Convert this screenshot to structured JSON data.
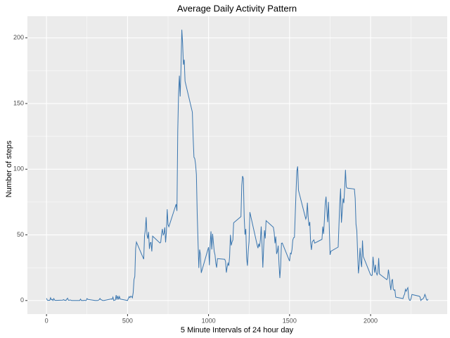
{
  "chart_data": {
    "type": "line",
    "title": "Average Daily Activity Pattern",
    "x_label": "5 Minute Intervals of 24 hour day",
    "y_label": "Number of steps",
    "color": "#3a76af",
    "grid": true,
    "xlim": [
      -117.75,
      2472.75
    ],
    "xticks": [
      0,
      500,
      1000,
      1500,
      2000
    ],
    "xminor": [
      250,
      750,
      1250,
      1750,
      2250
    ],
    "ylim": [
      -10.3,
      216.5
    ],
    "yticks": [
      0,
      50,
      100,
      150,
      200
    ],
    "yminor": [
      25,
      75,
      125,
      175
    ],
    "x": [
      0,
      5,
      10,
      15,
      20,
      25,
      30,
      35,
      40,
      45,
      50,
      55,
      100,
      105,
      110,
      115,
      120,
      125,
      130,
      135,
      140,
      145,
      150,
      155,
      200,
      205,
      210,
      215,
      220,
      225,
      230,
      235,
      240,
      245,
      250,
      255,
      300,
      305,
      310,
      315,
      320,
      325,
      330,
      335,
      340,
      345,
      350,
      355,
      400,
      405,
      410,
      415,
      420,
      425,
      430,
      435,
      440,
      445,
      450,
      455,
      500,
      505,
      510,
      515,
      520,
      525,
      530,
      535,
      540,
      545,
      550,
      555,
      600,
      605,
      610,
      615,
      620,
      625,
      630,
      635,
      640,
      645,
      650,
      655,
      700,
      705,
      710,
      715,
      720,
      725,
      730,
      735,
      740,
      745,
      750,
      755,
      800,
      805,
      810,
      815,
      820,
      825,
      830,
      835,
      840,
      845,
      850,
      855,
      900,
      905,
      910,
      915,
      920,
      925,
      930,
      935,
      940,
      945,
      950,
      955,
      1000,
      1005,
      1010,
      1015,
      1020,
      1025,
      1030,
      1035,
      1040,
      1045,
      1050,
      1055,
      1100,
      1105,
      1110,
      1115,
      1120,
      1125,
      1130,
      1135,
      1140,
      1145,
      1150,
      1155,
      1200,
      1205,
      1210,
      1215,
      1220,
      1225,
      1230,
      1235,
      1240,
      1245,
      1250,
      1255,
      1300,
      1305,
      1310,
      1315,
      1320,
      1325,
      1330,
      1335,
      1340,
      1345,
      1350,
      1355,
      1400,
      1405,
      1410,
      1415,
      1420,
      1425,
      1430,
      1435,
      1440,
      1445,
      1450,
      1455,
      1500,
      1505,
      1510,
      1515,
      1520,
      1525,
      1530,
      1535,
      1540,
      1545,
      1550,
      1555,
      1600,
      1605,
      1610,
      1615,
      1620,
      1625,
      1630,
      1635,
      1640,
      1645,
      1650,
      1655,
      1700,
      1705,
      1710,
      1715,
      1720,
      1725,
      1730,
      1735,
      1740,
      1745,
      1750,
      1755,
      1800,
      1805,
      1810,
      1815,
      1820,
      1825,
      1830,
      1835,
      1840,
      1845,
      1850,
      1855,
      1900,
      1905,
      1910,
      1915,
      1920,
      1925,
      1930,
      1935,
      1940,
      1945,
      1950,
      1955,
      2000,
      2005,
      2010,
      2015,
      2020,
      2025,
      2030,
      2035,
      2040,
      2045,
      2050,
      2055,
      2100,
      2105,
      2110,
      2115,
      2120,
      2125,
      2130,
      2135,
      2140,
      2145,
      2150,
      2155,
      2200,
      2205,
      2210,
      2215,
      2220,
      2225,
      2230,
      2235,
      2240,
      2245,
      2250,
      2255,
      2300,
      2305,
      2310,
      2315,
      2320,
      2325,
      2330,
      2335,
      2340,
      2345,
      2350,
      2355
    ],
    "values": [
      1.7,
      0.3,
      0.1,
      0.2,
      0.1,
      2.1,
      0.5,
      0.9,
      0,
      1.5,
      0.3,
      0.1,
      0.3,
      0.7,
      0.2,
      0.3,
      0,
      1.1,
      1.8,
      0.2,
      0.2,
      0.4,
      0.3,
      0,
      0,
      0,
      1.1,
      0,
      0,
      0.1,
      0,
      0.2,
      0,
      0,
      1.5,
      0.9,
      0,
      0,
      0,
      0,
      0.2,
      0.6,
      1.6,
      0.6,
      0.5,
      0.1,
      0,
      0,
      1.2,
      0.9,
      2.6,
      0,
      0.3,
      0.4,
      4.1,
      0.7,
      3.5,
      0.8,
      3.1,
      1.1,
      0,
      1.6,
      3,
      2.2,
      3.3,
      3,
      2.1,
      6.1,
      16,
      18.3,
      39.5,
      44.5,
      31.5,
      49.3,
      53.8,
      63.5,
      50,
      47.1,
      52.2,
      39.3,
      44,
      44.2,
      37.4,
      49,
      43.8,
      44.4,
      50.5,
      54.5,
      49.9,
      51,
      55.7,
      44.3,
      52.3,
      69.5,
      57.8,
      56.2,
      73.4,
      68.2,
      129.4,
      157.5,
      171.2,
      155.4,
      177.3,
      206.2,
      195.9,
      179.6,
      183.4,
      167,
      143.5,
      124,
      109.1,
      108.1,
      103.7,
      95.9,
      66.2,
      45.2,
      24.8,
      38.8,
      35,
      21.1,
      40.6,
      26.9,
      42.4,
      52.7,
      38.9,
      50.8,
      44.3,
      37.4,
      34.7,
      28.3,
      25.1,
      31.9,
      31.4,
      29.7,
      21.3,
      25.5,
      28.4,
      26.5,
      33.4,
      50,
      42,
      44.6,
      46,
      59.2,
      63.9,
      87.7,
      94.8,
      92.8,
      63.4,
      50.2,
      54.5,
      32.4,
      26.5,
      37.7,
      45.1,
      67.3,
      42.3,
      39.9,
      43.3,
      40.9,
      46.2,
      56.4,
      42.8,
      25.1,
      40,
      53.5,
      47.3,
      60.8,
      55.8,
      51.9,
      43.6,
      48.7,
      35.5,
      37.5,
      41.8,
      27.5,
      17.1,
      26.1,
      43.6,
      43.8,
      30,
      36.1,
      35.5,
      38.8,
      46,
      47.8,
      48.1,
      65.3,
      82.9,
      98.7,
      102.1,
      83.9,
      62.1,
      64.1,
      74.5,
      63.2,
      56.9,
      59.8,
      43.9,
      38.6,
      44.7,
      45.5,
      46.2,
      43.7,
      46.6,
      56.3,
      50.7,
      61.2,
      73.4,
      79.1,
      68.9,
      59.7,
      75.1,
      56.5,
      34.8,
      37.5,
      40.7,
      58,
      74.7,
      85.3,
      59.3,
      67.8,
      77.7,
      74.2,
      85.3,
      99.5,
      86.6,
      85.6,
      84.9,
      77.8,
      58,
      53.4,
      36.3,
      20.7,
      27.4,
      40,
      30.2,
      25.5,
      45.7,
      33.5,
      19.6,
      19,
      19.3,
      33.3,
      26.8,
      21.2,
      27.3,
      21.3,
      19.5,
      21.3,
      32.3,
      20.2,
      15.9,
      17.2,
      23.5,
      19.2,
      12.5,
      8,
      14.7,
      16.3,
      8.7,
      7.8,
      8.1,
      2.6,
      1.5,
      3.7,
      4.8,
      8.5,
      7.1,
      8.7,
      9.8,
      2.2,
      0.3,
      0.1,
      1.6,
      4.6,
      3.3,
      2.8,
      0,
      0.8,
      1,
      1.6,
      2.6,
      4.7,
      3.3,
      0.6,
      0.2,
      1.1
    ]
  }
}
